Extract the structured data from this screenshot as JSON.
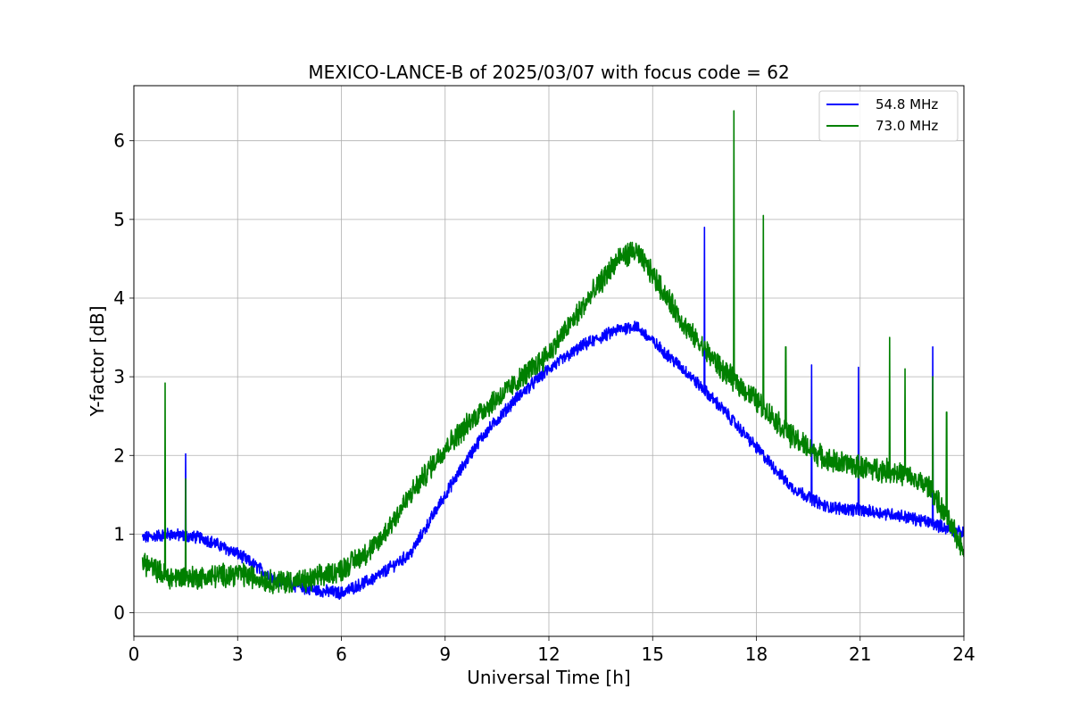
{
  "chart_data": {
    "type": "line",
    "title": "MEXICO-LANCE-B of 2025/03/07 with focus code = 62",
    "xlabel": "Universal Time [h]",
    "ylabel": "Y-factor [dB]",
    "xlim": [
      0,
      24
    ],
    "ylim": [
      -0.3,
      6.7
    ],
    "xticks": [
      0,
      3,
      6,
      9,
      12,
      15,
      18,
      21,
      24
    ],
    "yticks": [
      0,
      1,
      2,
      3,
      4,
      5,
      6
    ],
    "grid": true,
    "legend_position": "top-right",
    "series": [
      {
        "name": "54.8 MHz",
        "color": "#0000ff",
        "x": [
          0.25,
          1,
          2,
          3,
          4,
          5,
          6,
          7,
          8,
          9,
          10,
          11,
          12,
          13,
          14,
          14.5,
          15,
          16,
          17,
          18,
          19,
          20,
          21,
          22,
          23,
          24
        ],
        "y": [
          0.95,
          1.0,
          0.95,
          0.75,
          0.45,
          0.3,
          0.25,
          0.45,
          0.75,
          1.5,
          2.2,
          2.7,
          3.1,
          3.4,
          3.6,
          3.65,
          3.45,
          3.05,
          2.6,
          2.1,
          1.6,
          1.35,
          1.3,
          1.25,
          1.15,
          1.0
        ],
        "noise": 0.07,
        "spikes": [
          {
            "x": 1.5,
            "y": 2.02
          },
          {
            "x": 16.5,
            "y": 4.9
          },
          {
            "x": 19.6,
            "y": 3.15
          },
          {
            "x": 20.95,
            "y": 3.12
          },
          {
            "x": 23.1,
            "y": 3.38
          }
        ]
      },
      {
        "name": "73.0 MHz",
        "color": "#008000",
        "x": [
          0.25,
          1,
          2,
          3,
          4,
          5,
          6,
          7,
          8,
          9,
          10,
          11,
          12,
          13,
          14,
          14.5,
          15,
          16,
          17,
          18,
          19,
          20,
          21,
          22,
          23,
          24
        ],
        "y": [
          0.65,
          0.45,
          0.45,
          0.5,
          0.4,
          0.4,
          0.55,
          0.85,
          1.5,
          2.1,
          2.55,
          2.9,
          3.3,
          3.9,
          4.5,
          4.6,
          4.3,
          3.6,
          3.1,
          2.7,
          2.25,
          1.95,
          1.85,
          1.8,
          1.6,
          0.8
        ],
        "noise": 0.13,
        "spikes": [
          {
            "x": 0.9,
            "y": 2.92
          },
          {
            "x": 1.5,
            "y": 1.7
          },
          {
            "x": 17.35,
            "y": 6.38
          },
          {
            "x": 18.2,
            "y": 5.05
          },
          {
            "x": 18.85,
            "y": 3.38
          },
          {
            "x": 21.85,
            "y": 3.5
          },
          {
            "x": 22.3,
            "y": 3.1
          },
          {
            "x": 23.1,
            "y": 3.0
          },
          {
            "x": 23.5,
            "y": 2.55
          }
        ]
      }
    ]
  }
}
